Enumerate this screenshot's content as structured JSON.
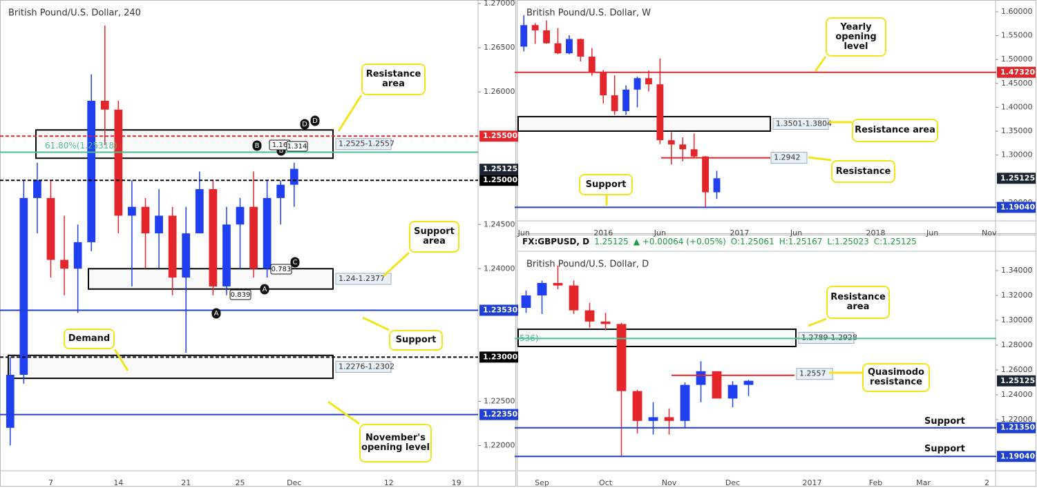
{
  "chart_data": [
    {
      "type": "candlestick",
      "title": "British Pound/U.S. Dollar, 240",
      "up_color": "#1f3ff0",
      "down_color": "#e2262b",
      "categories": [
        null,
        null,
        null,
        "7",
        null,
        null,
        null,
        null,
        "14",
        null,
        null,
        null,
        null,
        "21",
        null,
        null,
        null,
        "25",
        null,
        null,
        null,
        "Dec",
        null,
        null,
        null,
        null,
        null,
        null,
        "12",
        null,
        null,
        null,
        null,
        "19",
        null
      ],
      "open": [
        1.222,
        1.228,
        1.248,
        1.248,
        1.241,
        1.24,
        1.243,
        1.259,
        1.258,
        1.246,
        1.247,
        1.244,
        1.246,
        1.239,
        1.244,
        1.249,
        1.238,
        1.245,
        1.247,
        1.24,
        1.248,
        1.2495,
        null,
        null,
        null,
        null,
        null,
        null,
        null,
        null,
        null,
        null,
        null,
        null,
        null
      ],
      "high": [
        1.23,
        1.25,
        1.252,
        1.25,
        1.246,
        1.245,
        1.262,
        1.2675,
        1.259,
        1.25,
        1.248,
        1.249,
        1.247,
        1.247,
        1.251,
        1.25,
        1.247,
        1.248,
        1.251,
        1.25,
        1.25,
        1.252,
        null,
        null,
        null,
        null,
        null,
        null,
        null,
        null,
        null,
        null,
        null,
        null,
        null
      ],
      "low": [
        1.22,
        1.227,
        1.244,
        1.239,
        1.237,
        1.235,
        1.242,
        1.254,
        1.244,
        1.238,
        1.24,
        1.24,
        1.237,
        1.2305,
        1.244,
        1.237,
        1.237,
        1.24,
        1.239,
        1.239,
        1.245,
        1.247,
        null,
        null,
        null,
        null,
        null,
        null,
        null,
        null,
        null,
        null,
        null,
        null,
        null
      ],
      "close": [
        1.228,
        1.248,
        1.25,
        1.241,
        1.24,
        1.243,
        1.259,
        1.258,
        1.246,
        1.247,
        1.244,
        1.246,
        1.239,
        1.244,
        1.249,
        1.238,
        1.245,
        1.247,
        1.24,
        1.248,
        1.2495,
        1.2513,
        null,
        null,
        null,
        null,
        null,
        null,
        null,
        null,
        null,
        null,
        null,
        null,
        null
      ],
      "ylim": [
        1.2173,
        1.2704
      ],
      "yticks": [
        {
          "value": 1.27,
          "label": "1.27000"
        },
        {
          "value": 1.265,
          "label": "1.26500"
        },
        {
          "value": 1.26,
          "label": "1.26000"
        },
        {
          "value": 1.245,
          "label": "1.24500"
        },
        {
          "value": 1.24,
          "label": "1.24000"
        },
        {
          "value": 1.225,
          "label": "1.22500"
        },
        {
          "value": 1.22,
          "label": "1.22000"
        }
      ],
      "levels": [
        {
          "value": 1.255,
          "label": "1.25500",
          "color": "#e2262b",
          "style": "dashed",
          "tag": "axis"
        },
        {
          "value": 1.25318,
          "label": "61.80%(1.25318)",
          "color": "#4cc08e",
          "style": "solid",
          "tag": "inline"
        },
        {
          "value": 1.25125,
          "label": "1.25125",
          "color": "#1b2433",
          "style": "none",
          "tag": "axis"
        },
        {
          "value": 1.25,
          "label": "1.25000",
          "color": "#000000",
          "style": "dashed",
          "tag": "axis"
        },
        {
          "value": 1.2353,
          "label": "1.23530",
          "color": "#1f3fd0",
          "style": "solid",
          "tag": "axis"
        },
        {
          "value": 1.23,
          "label": "1.23000",
          "color": "#000000",
          "style": "dashed",
          "tag": "axis"
        },
        {
          "value": 1.2235,
          "label": "1.22350",
          "color": "#1f3fd0",
          "style": "solid",
          "tag": "axis"
        }
      ],
      "zones": [
        {
          "range": [
            1.2525,
            1.2557
          ],
          "label": "1.2525-1.2557"
        },
        {
          "range": [
            1.2377,
            1.24
          ],
          "label": "1.24-1.2377"
        },
        {
          "range": [
            1.2276,
            1.2302
          ],
          "label": "1.2276-1.2302"
        }
      ],
      "annotations": [
        "D",
        "D",
        "B",
        "B",
        "1.16",
        "1.314",
        "C",
        "0.783",
        "A",
        "0.839",
        "A"
      ],
      "callouts": [
        "Resistance area",
        "Support area",
        "Support",
        "Demand",
        "November's opening level"
      ]
    },
    {
      "type": "candlestick",
      "title": "British Pound/U.S. Dollar, W",
      "up_color": "#1f3ff0",
      "down_color": "#e2262b",
      "categories": [
        "Jun",
        null,
        null,
        null,
        null,
        null,
        null,
        "2016",
        null,
        null,
        null,
        null,
        "Jun",
        null,
        null,
        null,
        null,
        null,
        null,
        "2017",
        null,
        null,
        null,
        null,
        "Jun",
        null,
        null,
        null,
        null,
        null,
        null,
        "2018",
        null,
        null,
        null,
        null,
        "Jun",
        null,
        null,
        null,
        null,
        "Nov"
      ],
      "open": [
        1.527,
        1.572,
        1.561,
        1.534,
        1.513,
        1.543,
        1.506,
        1.474,
        1.425,
        1.392,
        1.437,
        1.461,
        1.448,
        1.331,
        1.322,
        1.312,
        1.297,
        1.222,
        null,
        null,
        null,
        null,
        null,
        null,
        null,
        null,
        null,
        null,
        null,
        null,
        null,
        null,
        null,
        null,
        null,
        null,
        null,
        null,
        null,
        null,
        null,
        null
      ],
      "high": [
        1.593,
        1.576,
        1.582,
        1.566,
        1.551,
        1.544,
        1.524,
        1.478,
        1.467,
        1.446,
        1.464,
        1.477,
        1.502,
        1.348,
        1.337,
        1.345,
        1.298,
        1.267,
        null,
        null,
        null,
        null,
        null,
        null,
        null,
        null,
        null,
        null,
        null,
        null,
        null,
        null,
        null,
        null,
        null,
        null,
        null,
        null,
        null,
        null,
        null,
        null
      ],
      "low": [
        1.517,
        1.533,
        1.533,
        1.511,
        1.511,
        1.496,
        1.466,
        1.408,
        1.384,
        1.384,
        1.4,
        1.433,
        1.323,
        1.28,
        1.287,
        1.295,
        1.1905,
        1.208,
        null,
        null,
        null,
        null,
        null,
        null,
        null,
        null,
        null,
        null,
        null,
        null,
        null,
        null,
        null,
        null,
        null,
        null,
        null,
        null,
        null,
        null,
        null,
        null
      ],
      "close": [
        1.572,
        1.561,
        1.534,
        1.513,
        1.543,
        1.506,
        1.474,
        1.425,
        1.392,
        1.437,
        1.461,
        1.448,
        1.331,
        1.322,
        1.312,
        1.297,
        1.222,
        1.2513,
        null,
        null,
        null,
        null,
        null,
        null,
        null,
        null,
        null,
        null,
        null,
        null,
        null,
        null,
        null,
        null,
        null,
        null,
        null,
        null,
        null,
        null,
        null,
        null
      ],
      "ylim": [
        1.165,
        1.6246
      ],
      "yticks": [
        {
          "value": 1.6,
          "label": "1.60000"
        },
        {
          "value": 1.55,
          "label": "1.55000"
        },
        {
          "value": 1.5,
          "label": "1.50000"
        },
        {
          "value": 1.45,
          "label": "1.45000"
        },
        {
          "value": 1.4,
          "label": "1.40000"
        },
        {
          "value": 1.35,
          "label": "1.35000"
        },
        {
          "value": 1.3,
          "label": "1.30000"
        },
        {
          "value": 1.2,
          "label": "1.20000"
        }
      ],
      "levels": [
        {
          "value": 1.4732,
          "label": "1.47320",
          "color": "#e2262b",
          "style": "solid",
          "tag": "axis"
        },
        {
          "value": 1.2942,
          "label": "1.2942",
          "color": "#e2262b",
          "style": "solid",
          "tag": "inline"
        },
        {
          "value": 1.25125,
          "label": "1.25125",
          "color": "#1b2433",
          "style": "none",
          "tag": "axis"
        },
        {
          "value": 1.1904,
          "label": "1.19040",
          "color": "#1f3fd0",
          "style": "solid",
          "tag": "axis"
        }
      ],
      "zones": [
        {
          "range": [
            1.3501,
            1.3804
          ],
          "label": "1.3501-1.3804"
        }
      ],
      "annotations": [],
      "callouts": [
        "Yearly opening level",
        "Resistance area",
        "Resistance",
        "Support"
      ]
    },
    {
      "type": "candlestick",
      "title": "British Pound/U.S. Dollar, D",
      "up_color": "#1f3ff0",
      "down_color": "#e2262b",
      "header": {
        "symbol": "FX:GBPUSD, D",
        "last": "1.25125",
        "change": "▲ +0.00064 (+0.05%)",
        "open": "O:1.25061",
        "high": "H:1.25167",
        "low": "L:1.25023",
        "close": "C:1.25125"
      },
      "categories": [
        null,
        "Sep",
        null,
        null,
        null,
        "Oct",
        null,
        null,
        null,
        "Nov",
        null,
        null,
        null,
        "Dec",
        null,
        null,
        null,
        null,
        "2017",
        null,
        null,
        null,
        "Feb",
        null,
        null,
        "Mar",
        null,
        null,
        null,
        "2"
      ],
      "open": [
        1.31,
        1.32,
        1.33,
        1.328,
        1.308,
        1.299,
        1.297,
        1.243,
        1.219,
        1.222,
        1.219,
        1.248,
        1.259,
        1.237,
        1.248,
        null,
        null,
        null,
        null,
        null,
        null,
        null,
        null,
        null,
        null,
        null,
        null,
        null,
        null,
        null
      ],
      "high": [
        1.324,
        1.332,
        1.344,
        1.332,
        1.314,
        1.306,
        1.298,
        1.244,
        1.234,
        1.229,
        1.25,
        1.267,
        1.259,
        1.251,
        1.252,
        null,
        null,
        null,
        null,
        null,
        null,
        null,
        null,
        null,
        null,
        null,
        null,
        null,
        null,
        null
      ],
      "low": [
        1.306,
        1.305,
        1.325,
        1.305,
        1.294,
        1.292,
        1.1905,
        1.209,
        1.208,
        1.208,
        1.213,
        1.234,
        1.238,
        1.23,
        1.239,
        null,
        null,
        null,
        null,
        null,
        null,
        null,
        null,
        null,
        null,
        null,
        null,
        null,
        null,
        null
      ],
      "close": [
        1.32,
        1.33,
        1.328,
        1.308,
        1.299,
        1.297,
        1.243,
        1.219,
        1.222,
        1.219,
        1.248,
        1.259,
        1.237,
        1.248,
        1.2513,
        null,
        null,
        null,
        null,
        null,
        null,
        null,
        null,
        null,
        null,
        null,
        null,
        null,
        null,
        null
      ],
      "ylim": [
        1.18,
        1.355
      ],
      "yticks": [
        {
          "value": 1.34,
          "label": "1.34000"
        },
        {
          "value": 1.32,
          "label": "1.32000"
        },
        {
          "value": 1.3,
          "label": "1.30000"
        },
        {
          "value": 1.28,
          "label": "1.28000"
        },
        {
          "value": 1.26,
          "label": "1.26000"
        },
        {
          "value": 1.24,
          "label": "1.24000"
        },
        {
          "value": 1.22,
          "label": "1.22000"
        }
      ],
      "levels": [
        {
          "value": 1.28536,
          "label": "536)",
          "color": "#4cc08e",
          "style": "solid",
          "tag": "inline"
        },
        {
          "value": 1.2557,
          "label": "1.2557",
          "color": "#e2262b",
          "style": "solid",
          "tag": "inline"
        },
        {
          "value": 1.25125,
          "label": "1.25125",
          "color": "#1b2433",
          "style": "none",
          "tag": "axis"
        },
        {
          "value": 1.2135,
          "label": "1.21350",
          "color": "#1f3fd0",
          "style": "solid",
          "tag": "axis"
        },
        {
          "value": 1.1904,
          "label": "1.19040",
          "color": "#1f3fd0",
          "style": "solid",
          "tag": "axis"
        }
      ],
      "zones": [
        {
          "range": [
            1.2789,
            1.2928
          ],
          "label": "1.2789-1.2928"
        }
      ],
      "annotations": [],
      "callouts": [
        "Resistance area",
        "Quasimodo resistance",
        "Support",
        "Support"
      ]
    }
  ]
}
